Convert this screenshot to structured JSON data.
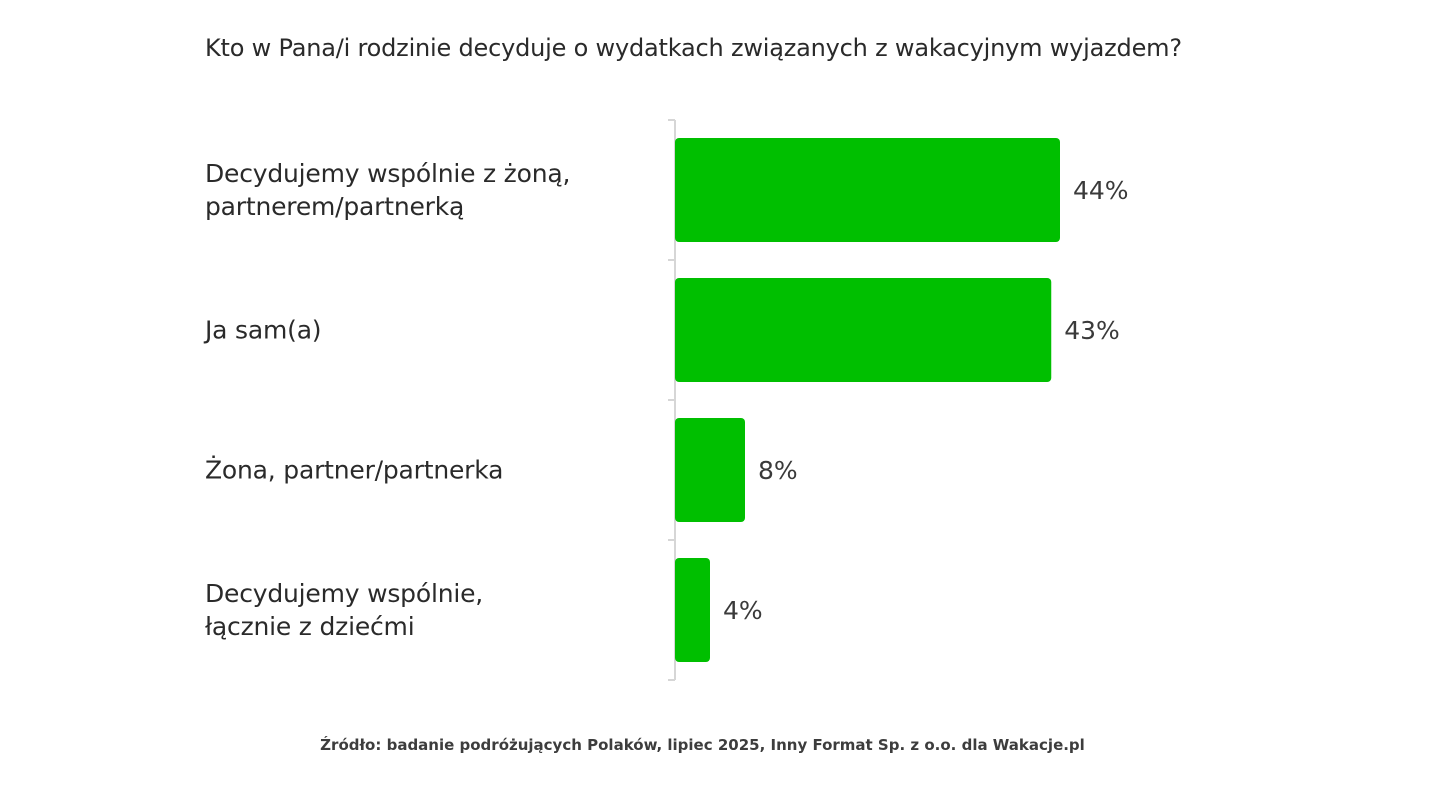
{
  "title": "Kto w Pana/i rodzinie decyduje o wydatkach związanych z wakacyjnym wyjazdem?",
  "source": "Źródło: badanie podróżujących Polaków, lipiec 2025, Inny Format Sp. z o.o. dla Wakacje.pl",
  "colors": {
    "bar": "#00bf00",
    "axis": "#d6d6d6",
    "text": "#2a2a2a",
    "value_label": "#3a3a3a"
  },
  "chart_data": {
    "type": "bar",
    "orientation": "horizontal",
    "title": "Kto w Pana/i rodzinie decyduje o wydatkach związanych z wakacyjnym wyjazdem?",
    "categories": [
      "Decydujemy wspólnie z żoną, partnerem/partnerką",
      "Ja sam(a)",
      "Żona, partner/partnerka",
      "Decydujemy wspólnie, łącznie z dziećmi"
    ],
    "category_lines": [
      [
        "Decydujemy wspólnie z żoną,",
        "partnerem/partnerką"
      ],
      [
        "Ja sam(a)"
      ],
      [
        "Żona, partner/partnerka"
      ],
      [
        "Decydujemy wspólnie,",
        "łącznie z dziećmi"
      ]
    ],
    "values": [
      44,
      43,
      8,
      4
    ],
    "value_labels": [
      "44%",
      "43%",
      "8%",
      "4%"
    ],
    "unit": "%",
    "grid": false,
    "legend": "none"
  }
}
